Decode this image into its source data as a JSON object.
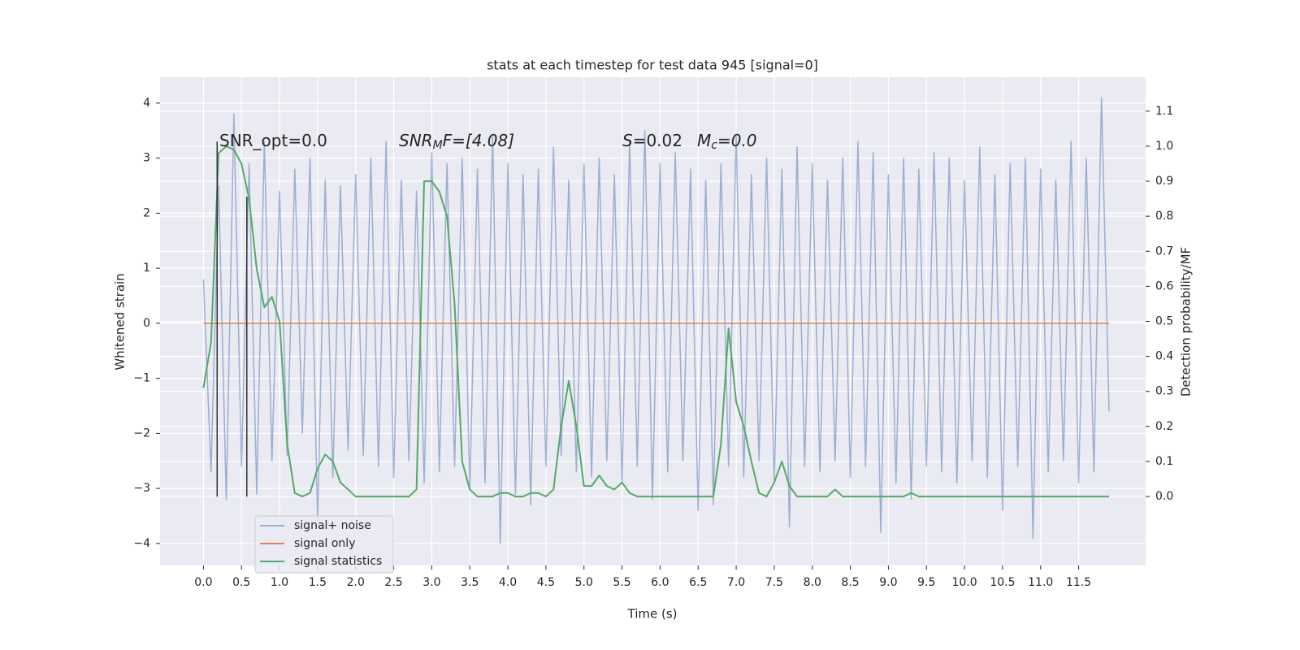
{
  "chart_data": {
    "type": "line",
    "title": "stats at each timestep for test data 945 [signal=0]",
    "xlabel": "Time (s)",
    "ylabel": "Whitened strain",
    "y2label": "Detection probability/MF",
    "grid": true,
    "legend": "lower left",
    "x": [
      0.0,
      0.1,
      0.2,
      0.3,
      0.4,
      0.5,
      0.6,
      0.7,
      0.8,
      0.9,
      1.0,
      1.1,
      1.2,
      1.3,
      1.4,
      1.5,
      1.6,
      1.7,
      1.8,
      1.9,
      2.0,
      2.1,
      2.2,
      2.3,
      2.4,
      2.5,
      2.6,
      2.7,
      2.8,
      2.9,
      3.0,
      3.1,
      3.2,
      3.3,
      3.4,
      3.5,
      3.6,
      3.7,
      3.8,
      3.9,
      4.0,
      4.1,
      4.2,
      4.3,
      4.4,
      4.5,
      4.6,
      4.7,
      4.8,
      4.9,
      5.0,
      5.1,
      5.2,
      5.3,
      5.4,
      5.5,
      5.6,
      5.7,
      5.8,
      5.9,
      6.0,
      6.1,
      6.2,
      6.3,
      6.4,
      6.5,
      6.6,
      6.7,
      6.8,
      6.9,
      7.0,
      7.1,
      7.2,
      7.3,
      7.4,
      7.5,
      7.6,
      7.7,
      7.8,
      7.9,
      8.0,
      8.1,
      8.2,
      8.3,
      8.4,
      8.5,
      8.6,
      8.7,
      8.8,
      8.9,
      9.0,
      9.1,
      9.2,
      9.3,
      9.4,
      9.5,
      9.6,
      9.7,
      9.8,
      9.9,
      10.0,
      10.1,
      10.2,
      10.3,
      10.4,
      10.5,
      10.6,
      10.7,
      10.8,
      10.9,
      11.0,
      11.1,
      11.2,
      11.3,
      11.4,
      11.5,
      11.6,
      11.7,
      11.8,
      11.9
    ],
    "series": [
      {
        "name": "signal+ noise",
        "color": "#4c72b0",
        "alpha": 0.5,
        "axis": "y",
        "values": [
          0.8,
          -2.7,
          2.5,
          -3.2,
          3.8,
          -2.6,
          2.9,
          -3.1,
          3.3,
          -2.5,
          2.4,
          -2.4,
          2.8,
          -2.0,
          3.0,
          -3.6,
          2.6,
          -2.8,
          2.5,
          -2.3,
          2.7,
          -2.4,
          3.0,
          -2.6,
          3.3,
          -2.8,
          2.6,
          -2.5,
          2.4,
          -2.9,
          3.1,
          -2.7,
          2.9,
          -2.6,
          3.0,
          -3.0,
          2.8,
          -2.9,
          3.4,
          -4.0,
          2.9,
          -3.1,
          2.7,
          -3.3,
          2.8,
          -2.6,
          3.2,
          -2.4,
          2.6,
          -2.7,
          2.9,
          -2.8,
          3.0,
          -2.5,
          2.7,
          -2.9,
          3.3,
          -2.6,
          3.5,
          -3.2,
          2.9,
          -2.7,
          3.1,
          -2.5,
          2.8,
          -3.4,
          2.6,
          -3.3,
          2.9,
          -2.6,
          3.4,
          -2.8,
          2.7,
          -2.5,
          3.0,
          -2.9,
          2.8,
          -3.7,
          3.2,
          -2.6,
          2.9,
          -2.7,
          2.6,
          -2.5,
          3.0,
          -2.8,
          3.3,
          -2.6,
          3.1,
          -3.8,
          2.7,
          -2.9,
          3.0,
          -3.2,
          2.8,
          -2.6,
          3.1,
          -2.7,
          3.0,
          -2.9,
          2.6,
          -2.5,
          3.2,
          -2.8,
          2.7,
          -3.4,
          2.9,
          -2.6,
          3.0,
          -3.9,
          2.8,
          -2.7,
          2.6,
          -2.5,
          3.3,
          -2.9,
          3.0,
          -2.7,
          4.1,
          -1.6
        ]
      },
      {
        "name": "signal only",
        "color": "#dd8452",
        "alpha": 1,
        "axis": "y",
        "values": [
          0,
          0,
          0,
          0,
          0,
          0,
          0,
          0,
          0,
          0,
          0,
          0,
          0,
          0,
          0,
          0,
          0,
          0,
          0,
          0,
          0,
          0,
          0,
          0,
          0,
          0,
          0,
          0,
          0,
          0,
          0,
          0,
          0,
          0,
          0,
          0,
          0,
          0,
          0,
          0,
          0,
          0,
          0,
          0,
          0,
          0,
          0,
          0,
          0,
          0,
          0,
          0,
          0,
          0,
          0,
          0,
          0,
          0,
          0,
          0,
          0,
          0,
          0,
          0,
          0,
          0,
          0,
          0,
          0,
          0,
          0,
          0,
          0,
          0,
          0,
          0,
          0,
          0,
          0,
          0,
          0,
          0,
          0,
          0,
          0,
          0,
          0,
          0,
          0,
          0,
          0,
          0,
          0,
          0,
          0,
          0,
          0,
          0,
          0,
          0,
          0,
          0,
          0,
          0,
          0,
          0,
          0,
          0,
          0,
          0,
          0,
          0,
          0,
          0,
          0,
          0,
          0,
          0,
          0,
          0
        ]
      },
      {
        "name": "signal statistics",
        "color": "#55a868",
        "alpha": 1,
        "axis": "y2",
        "values": [
          0.31,
          0.44,
          0.98,
          1.0,
          0.99,
          0.95,
          0.85,
          0.65,
          0.54,
          0.57,
          0.5,
          0.15,
          0.01,
          0.0,
          0.01,
          0.08,
          0.12,
          0.1,
          0.04,
          0.02,
          0.0,
          0.0,
          0.0,
          0.0,
          0.0,
          0.0,
          0.0,
          0.0,
          0.02,
          0.9,
          0.9,
          0.87,
          0.8,
          0.55,
          0.1,
          0.02,
          0.0,
          0.0,
          0.0,
          0.01,
          0.01,
          0.0,
          0.0,
          0.01,
          0.01,
          0.0,
          0.02,
          0.2,
          0.33,
          0.2,
          0.03,
          0.03,
          0.06,
          0.03,
          0.02,
          0.04,
          0.01,
          0.0,
          0.0,
          0.0,
          0.0,
          0.0,
          0.0,
          0.0,
          0.0,
          0.0,
          0.0,
          0.0,
          0.15,
          0.48,
          0.27,
          0.2,
          0.1,
          0.01,
          0.0,
          0.04,
          0.1,
          0.03,
          0.0,
          0.0,
          0.0,
          0.0,
          0.0,
          0.02,
          0.0,
          0.0,
          0.0,
          0.0,
          0.0,
          0.0,
          0.0,
          0.0,
          0.0,
          0.01,
          0.0,
          0.0,
          0.0,
          0.0,
          0.0,
          0.0,
          0.0,
          0.0,
          0.0,
          0.0,
          0.0,
          0.0,
          0.0,
          0.0,
          0.0,
          0.0,
          0.0,
          0.0,
          0.0,
          0.0,
          0.0,
          0.0,
          0.0,
          0.0,
          0.0,
          0.0
        ]
      }
    ],
    "vlines": [
      {
        "x": 0.18,
        "ymin": -3.15,
        "ymax": 3.3,
        "color": "#333333"
      },
      {
        "x": 0.57,
        "ymin": -3.15,
        "ymax": 2.3,
        "color": "#333333"
      }
    ],
    "annotations": [
      {
        "text": "SNR_opt=0.0"
      },
      {
        "text": "SNR",
        "sub": "M",
        "tail": "F=[4.08]"
      },
      {
        "text": "S",
        "tail": "=0.02"
      },
      {
        "text": "M",
        "sub": "c",
        "tail": "=0.0"
      }
    ],
    "xlim": [
      -0.57,
      12.38
    ],
    "xticks": [
      {
        "value": 0,
        "label": "0.0"
      },
      {
        "value": 0.5,
        "label": "0.5"
      },
      {
        "value": 1,
        "label": "1.0"
      },
      {
        "value": 1.5,
        "label": "1.5"
      },
      {
        "value": 2,
        "label": "2.0"
      },
      {
        "value": 2.5,
        "label": "2.5"
      },
      {
        "value": 3,
        "label": "3.0"
      },
      {
        "value": 3.5,
        "label": "3.5"
      },
      {
        "value": 4,
        "label": "4.0"
      },
      {
        "value": 4.5,
        "label": "4.5"
      },
      {
        "value": 5,
        "label": "5.0"
      },
      {
        "value": 5.5,
        "label": "5.5"
      },
      {
        "value": 6,
        "label": "6.0"
      },
      {
        "value": 6.5,
        "label": "6.5"
      },
      {
        "value": 7,
        "label": "7.0"
      },
      {
        "value": 7.5,
        "label": "7.5"
      },
      {
        "value": 8,
        "label": "8.0"
      },
      {
        "value": 8.5,
        "label": "8.5"
      },
      {
        "value": 9,
        "label": "9.0"
      },
      {
        "value": 9.5,
        "label": "9.5"
      },
      {
        "value": 10,
        "label": "10.0"
      },
      {
        "value": 10.5,
        "label": "10.5"
      },
      {
        "value": 11,
        "label": "11.0"
      },
      {
        "value": 11.5,
        "label": "11.5"
      }
    ],
    "ylim": [
      -4.4,
      4.47
    ],
    "yticks": [
      {
        "value": -4,
        "label": "−4"
      },
      {
        "value": -3,
        "label": "−3"
      },
      {
        "value": -2,
        "label": "−2"
      },
      {
        "value": -1,
        "label": "−1"
      },
      0,
      1,
      2,
      3,
      4
    ],
    "y2lim": [
      -0.197,
      1.197
    ],
    "y2ticks": [
      {
        "value": 0,
        "label": "0.0"
      },
      {
        "value": 0.1,
        "label": "0.1"
      },
      {
        "value": 0.2,
        "label": "0.2"
      },
      {
        "value": 0.3,
        "label": "0.3"
      },
      {
        "value": 0.4,
        "label": "0.4"
      },
      {
        "value": 0.5,
        "label": "0.5"
      },
      {
        "value": 0.6,
        "label": "0.6"
      },
      {
        "value": 0.7,
        "label": "0.7"
      },
      {
        "value": 0.8,
        "label": "0.8"
      },
      {
        "value": 0.9,
        "label": "0.9"
      },
      {
        "value": 1,
        "label": "1.0"
      },
      {
        "value": 1.1,
        "label": "1.1"
      }
    ]
  }
}
